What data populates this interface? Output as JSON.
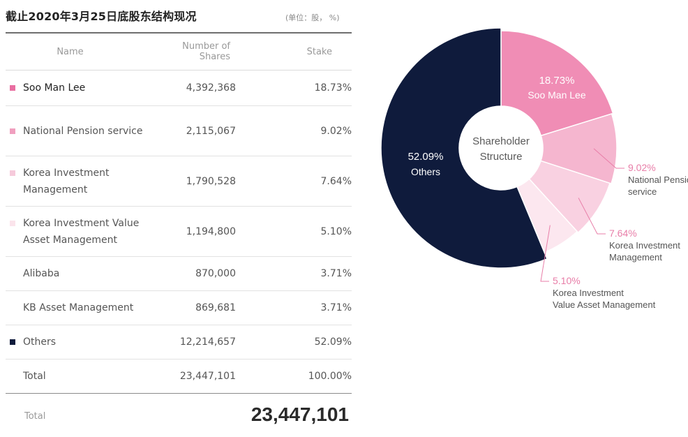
{
  "header": {
    "title": "截止2020年3月25日底股东结构现况",
    "unit_note": "(单位：股， %)"
  },
  "table": {
    "columns": [
      "Name",
      "Number of Shares",
      "Stake"
    ],
    "rows": [
      {
        "name": "Soo Man Lee",
        "shares": "4,392,368",
        "stake": "18.73%",
        "swatch": "#e96ea1"
      },
      {
        "name": "National Pension service",
        "shares": "2,115,067",
        "stake": "9.02%",
        "swatch": "#f09fbf"
      },
      {
        "name": "Korea Investment Management",
        "shares": "1,790,528",
        "stake": "7.64%",
        "swatch": "#f6cadb"
      },
      {
        "name": "Korea Investment Value Asset Management",
        "shares": "1,194,800",
        "stake": "5.10%",
        "swatch": "#fbe4ec"
      },
      {
        "name": "Alibaba",
        "shares": "870,000",
        "stake": "3.71%",
        "swatch": ""
      },
      {
        "name": "KB Asset Management",
        "shares": "869,681",
        "stake": "3.71%",
        "swatch": ""
      },
      {
        "name": "Others",
        "shares": "12,214,657",
        "stake": "52.09%",
        "swatch": "#0f1b3c"
      },
      {
        "name": "Total",
        "shares": "23,447,101",
        "stake": "100.00%",
        "swatch": ""
      }
    ]
  },
  "bottom_total": {
    "label": "Total",
    "value": "23,447,101"
  },
  "colors": {
    "soo_man_lee": "#f08db5",
    "national_pension": "#f5b6cf",
    "korea_investment": "#f9d1e1",
    "korea_investment_value": "#fce7ef",
    "others": "#0f1b3c",
    "label_pink": "#e87ea8"
  },
  "chart_data": {
    "type": "pie",
    "title": "Shareholder Structure",
    "center_label": [
      "Shareholder",
      "Structure"
    ],
    "categories": [
      "Soo Man Lee",
      "National Pension service",
      "Korea Investment Management",
      "Korea Investment Value Asset Management",
      "Others"
    ],
    "values": [
      18.73,
      9.02,
      7.64,
      5.1,
      52.09
    ],
    "slices": [
      {
        "label": "Soo Man Lee",
        "value": 18.73,
        "value_text": "18.73%",
        "label_lines": [
          "Soo Man Lee"
        ],
        "color": "#f08db5"
      },
      {
        "label": "National Pension service",
        "value": 9.02,
        "value_text": "9.02%",
        "label_lines": [
          "National Pension",
          "service"
        ],
        "color": "#f5b6cf"
      },
      {
        "label": "Korea Investment Management",
        "value": 7.64,
        "value_text": "7.64%",
        "label_lines": [
          "Korea Investment",
          "Management"
        ],
        "color": "#f9d1e1"
      },
      {
        "label": "Korea Investment Value Asset Management",
        "value": 5.1,
        "value_text": "5.10%",
        "label_lines": [
          "Korea Investment",
          "Value Asset Management"
        ],
        "color": "#fce7ef"
      },
      {
        "label": "Others",
        "value": 52.09,
        "value_text": "52.09%",
        "label_lines": [
          "Others"
        ],
        "color": "#0f1b3c"
      }
    ]
  }
}
